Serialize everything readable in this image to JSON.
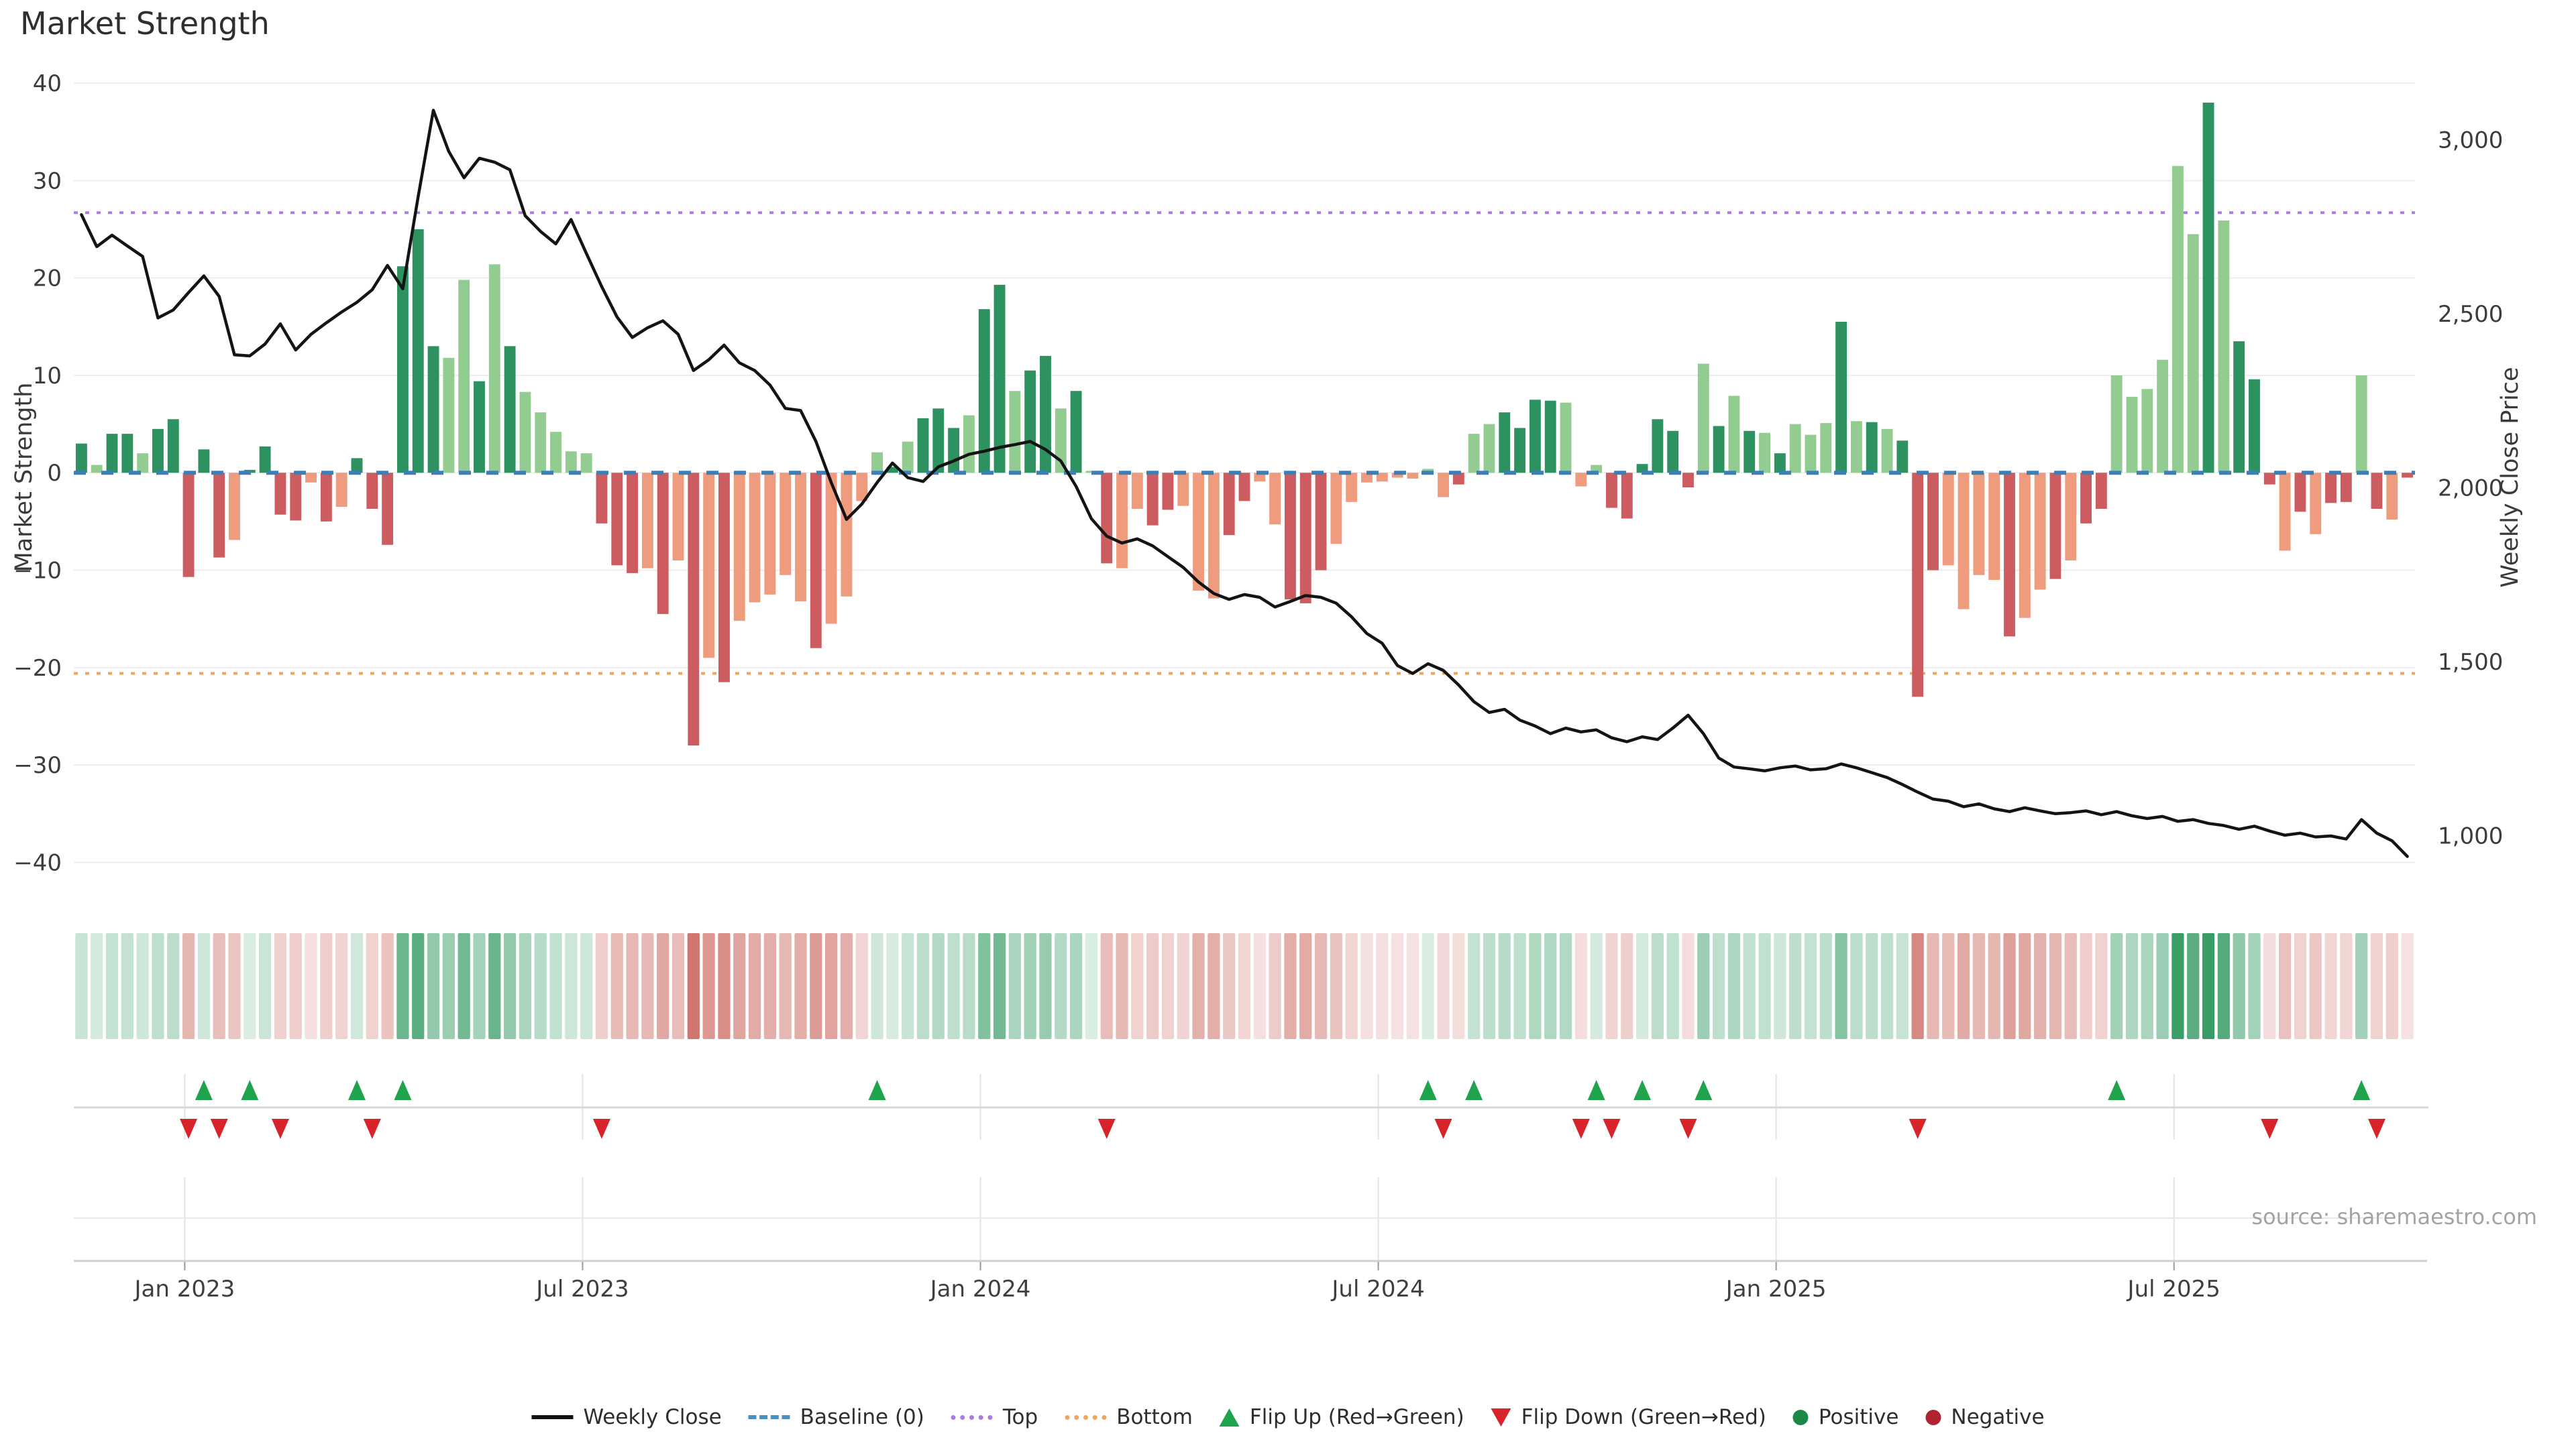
{
  "page": {
    "title": "Market Strength",
    "source": "source: sharemaestro.com"
  },
  "axes": {
    "left": {
      "title": "Market Strength",
      "ticks": [
        40,
        30,
        20,
        10,
        0,
        -10,
        -20,
        -30,
        -40
      ]
    },
    "right": {
      "title": "Weekly Close Price",
      "ticks": [
        {
          "value": 3000,
          "label": "3,000"
        },
        {
          "value": 2500,
          "label": "2,500"
        },
        {
          "value": 2000,
          "label": "2,000"
        },
        {
          "value": 1500,
          "label": "1,500"
        },
        {
          "value": 1000,
          "label": "1,000"
        }
      ]
    },
    "x": {
      "ticks": [
        {
          "label": "Jan 2023",
          "week": 7
        },
        {
          "label": "Jul 2023",
          "week": 33
        },
        {
          "label": "Jan 2024",
          "week": 59
        },
        {
          "label": "Jul 2024",
          "week": 85
        },
        {
          "label": "Jan 2025",
          "week": 111
        },
        {
          "label": "Jul 2025",
          "week": 137
        }
      ]
    }
  },
  "chart_data": {
    "type": "combo (bar + line + heatmap strip + flip markers)",
    "title": "Market Strength",
    "ylabel_left": "Market Strength",
    "ylabel_right": "Weekly Close Price",
    "ylim_left": [
      -43,
      42
    ],
    "weeks": 153,
    "reference_lines": {
      "baseline": 0,
      "top": 26.7,
      "bottom": -20.6
    },
    "right_axis_map": {
      "price_at_zero": 2043,
      "price_per_unit": 28
    },
    "strength": [
      3,
      0.8,
      4,
      4,
      2,
      4.5,
      5.5,
      -10.7,
      2.4,
      -8.7,
      -6.9,
      0.3,
      2.7,
      -4.3,
      -4.9,
      -1,
      -5,
      -3.5,
      1.5,
      -3.7,
      -7.4,
      21.2,
      25,
      13,
      11.8,
      19.8,
      9.4,
      21.4,
      13,
      8.3,
      6.2,
      4.2,
      2.2,
      2,
      -5.2,
      -9.5,
      -10.3,
      -9.8,
      -14.5,
      -9,
      -28,
      -19,
      -21.5,
      -15.2,
      -13.3,
      -12.5,
      -10.5,
      -13.2,
      -18,
      -15.5,
      -12.7,
      -2.9,
      2.1,
      0.6,
      3.2,
      5.6,
      6.6,
      4.6,
      5.9,
      16.8,
      19.3,
      8.4,
      10.5,
      12,
      6.6,
      8.4,
      0.2,
      -9.3,
      -9.8,
      -3.7,
      -5.4,
      -3.8,
      -3.4,
      -12.1,
      -12.9,
      -6.4,
      -2.9,
      -0.9,
      -5.3,
      -13,
      -13.4,
      -10,
      -7.3,
      -3,
      -1,
      -0.9,
      -0.5,
      -0.6,
      0.4,
      -2.5,
      -1.2,
      4,
      5,
      6.2,
      4.6,
      7.5,
      7.4,
      7.2,
      -1.4,
      0.8,
      -3.6,
      -4.7,
      0.9,
      5.5,
      4.3,
      -1.5,
      11.2,
      4.8,
      7.9,
      4.3,
      4.1,
      2,
      5,
      3.9,
      5.1,
      15.5,
      5.3,
      5.2,
      4.5,
      3.3,
      -23,
      -10,
      -9.5,
      -14,
      -10.5,
      -11,
      -16.8,
      -14.9,
      -12,
      -10.9,
      -9,
      -5.2,
      -3.7,
      10,
      7.8,
      8.6,
      11.6,
      31.5,
      24.5,
      38,
      25.9,
      13.5,
      9.6,
      -1.2,
      -8,
      -4,
      -6.3,
      -3.1,
      -3,
      10,
      -3.7,
      -4.8,
      -0.5
    ],
    "shades": "dlddldddddlddddldlddddddlldldllllldddldldldllllldlllldldddlddlddldldllddlllddlldddlllllllldllddddlllddddddldldldllldldldddlllldlldlddlllllldldddldlddldlddldlld ",
    "weekly_close": [
      2785,
      2693,
      2726,
      2695,
      2665,
      2488,
      2511,
      2561,
      2609,
      2550,
      2382,
      2379,
      2413,
      2471,
      2396,
      2441,
      2474,
      2505,
      2533,
      2569,
      2639,
      2572,
      2835,
      3085,
      2967,
      2891,
      2947,
      2936,
      2914,
      2782,
      2737,
      2701,
      2771,
      2673,
      2578,
      2491,
      2432,
      2460,
      2480,
      2441,
      2337,
      2368,
      2410,
      2359,
      2337,
      2295,
      2228,
      2222,
      2133,
      2015,
      1909,
      1953,
      2015,
      2071,
      2029,
      2018,
      2060,
      2077,
      2096,
      2105,
      2116,
      2124,
      2133,
      2110,
      2077,
      2004,
      1911,
      1861,
      1841,
      1853,
      1833,
      1802,
      1771,
      1729,
      1696,
      1679,
      1693,
      1685,
      1657,
      1673,
      1690,
      1685,
      1668,
      1629,
      1581,
      1553,
      1489,
      1466,
      1494,
      1475,
      1433,
      1385,
      1354,
      1363,
      1332,
      1315,
      1293,
      1309,
      1298,
      1304,
      1281,
      1270,
      1284,
      1276,
      1309,
      1346,
      1293,
      1223,
      1197,
      1192,
      1186,
      1195,
      1200,
      1189,
      1192,
      1206,
      1195,
      1181,
      1167,
      1147,
      1125,
      1105,
      1099,
      1083,
      1091,
      1077,
      1069,
      1080,
      1071,
      1063,
      1066,
      1071,
      1060,
      1069,
      1057,
      1049,
      1055,
      1041,
      1046,
      1035,
      1029,
      1018,
      1027,
      1013,
      1001,
      1007,
      996,
      999,
      990,
      1046,
      1007,
      985,
      940
    ],
    "flip_up_weeks": [
      8,
      11,
      18,
      21,
      52,
      88,
      91,
      99,
      102,
      106,
      133,
      149
    ],
    "flip_down_weeks": [
      7,
      9,
      13,
      19,
      34,
      67,
      89,
      98,
      100,
      105,
      120,
      143,
      150
    ],
    "colors": {
      "bar_positive_strong": "#2d9160",
      "bar_positive_weak": "#93cc90",
      "bar_negative_strong": "#cd5c60",
      "bar_negative_weak": "#ef9b7d",
      "weekly_close_line": "#141414",
      "baseline": "#3d80b8",
      "top_line": "#a87de0",
      "bottom_line": "#f2a45c",
      "flip_up": "#1fa34c",
      "flip_down": "#d8232a",
      "grid": "#ededf2"
    }
  },
  "legend": {
    "items": [
      {
        "label": "Weekly Close",
        "type": "line",
        "color": "#111111"
      },
      {
        "label": "Baseline (0)",
        "type": "dash",
        "color": "#4a8fc0"
      },
      {
        "label": "Top",
        "type": "dots",
        "color": "#a87de0"
      },
      {
        "label": "Bottom",
        "type": "dots",
        "color": "#f2a45c"
      },
      {
        "label": "Flip Up (Red→Green)",
        "type": "tri-up",
        "color": "#1fa34c"
      },
      {
        "label": "Flip Down (Green→Red)",
        "type": "tri-down",
        "color": "#d8232a"
      },
      {
        "label": "Positive",
        "type": "dot",
        "color": "#1a8a46"
      },
      {
        "label": "Negative",
        "type": "dot",
        "color": "#b22230"
      }
    ]
  }
}
